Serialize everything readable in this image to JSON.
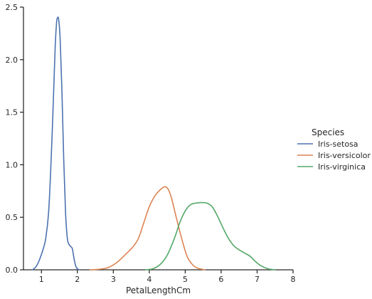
{
  "chart_data": {
    "type": "line",
    "title": "",
    "xlabel": "PetalLengthCm",
    "ylabel": "",
    "xlim": [
      0.5,
      8
    ],
    "ylim": [
      0,
      2.5
    ],
    "x_ticks": [
      1,
      2,
      3,
      4,
      5,
      6,
      7,
      8
    ],
    "y_ticks": [
      0.0,
      0.5,
      1.0,
      1.5,
      2.0,
      2.5
    ],
    "x_tick_labels": [
      "1",
      "2",
      "3",
      "4",
      "5",
      "6",
      "7",
      "8"
    ],
    "y_tick_labels": [
      "0.0",
      "0.5",
      "1.0",
      "1.5",
      "2.0",
      "2.5"
    ],
    "grid": false,
    "legend": {
      "title": "Species",
      "placement": "right"
    },
    "series": [
      {
        "name": "Iris-setosa",
        "color": "#4c72b0",
        "points": [
          [
            0.75,
            0.0
          ],
          [
            0.85,
            0.03
          ],
          [
            0.95,
            0.1
          ],
          [
            1.05,
            0.2
          ],
          [
            1.12,
            0.3
          ],
          [
            1.2,
            0.55
          ],
          [
            1.27,
            1.05
          ],
          [
            1.33,
            1.6
          ],
          [
            1.38,
            2.1
          ],
          [
            1.42,
            2.35
          ],
          [
            1.45,
            2.4
          ],
          [
            1.48,
            2.38
          ],
          [
            1.52,
            2.2
          ],
          [
            1.57,
            1.7
          ],
          [
            1.62,
            1.05
          ],
          [
            1.67,
            0.55
          ],
          [
            1.72,
            0.3
          ],
          [
            1.77,
            0.24
          ],
          [
            1.82,
            0.22
          ],
          [
            1.86,
            0.2
          ],
          [
            1.9,
            0.12
          ],
          [
            1.95,
            0.04
          ],
          [
            2.0,
            0.01
          ],
          [
            2.05,
            0.0
          ]
        ]
      },
      {
        "name": "Iris-versicolor",
        "color": "#dd8452",
        "points": [
          [
            2.35,
            0.0
          ],
          [
            2.6,
            0.005
          ],
          [
            2.85,
            0.02
          ],
          [
            3.1,
            0.07
          ],
          [
            3.35,
            0.15
          ],
          [
            3.55,
            0.22
          ],
          [
            3.7,
            0.3
          ],
          [
            3.85,
            0.45
          ],
          [
            4.0,
            0.6
          ],
          [
            4.15,
            0.7
          ],
          [
            4.3,
            0.76
          ],
          [
            4.42,
            0.79
          ],
          [
            4.52,
            0.77
          ],
          [
            4.62,
            0.68
          ],
          [
            4.75,
            0.5
          ],
          [
            4.9,
            0.3
          ],
          [
            5.05,
            0.13
          ],
          [
            5.2,
            0.05
          ],
          [
            5.35,
            0.015
          ],
          [
            5.55,
            0.0
          ]
        ]
      },
      {
        "name": "Iris-virginica",
        "color": "#55a868",
        "points": [
          [
            3.9,
            0.0
          ],
          [
            4.1,
            0.01
          ],
          [
            4.3,
            0.05
          ],
          [
            4.5,
            0.14
          ],
          [
            4.7,
            0.3
          ],
          [
            4.85,
            0.45
          ],
          [
            5.0,
            0.56
          ],
          [
            5.15,
            0.62
          ],
          [
            5.3,
            0.635
          ],
          [
            5.45,
            0.64
          ],
          [
            5.6,
            0.635
          ],
          [
            5.75,
            0.6
          ],
          [
            5.9,
            0.51
          ],
          [
            6.05,
            0.4
          ],
          [
            6.2,
            0.3
          ],
          [
            6.35,
            0.23
          ],
          [
            6.5,
            0.19
          ],
          [
            6.65,
            0.16
          ],
          [
            6.8,
            0.13
          ],
          [
            6.95,
            0.08
          ],
          [
            7.1,
            0.04
          ],
          [
            7.3,
            0.01
          ],
          [
            7.5,
            0.0
          ]
        ]
      }
    ]
  }
}
